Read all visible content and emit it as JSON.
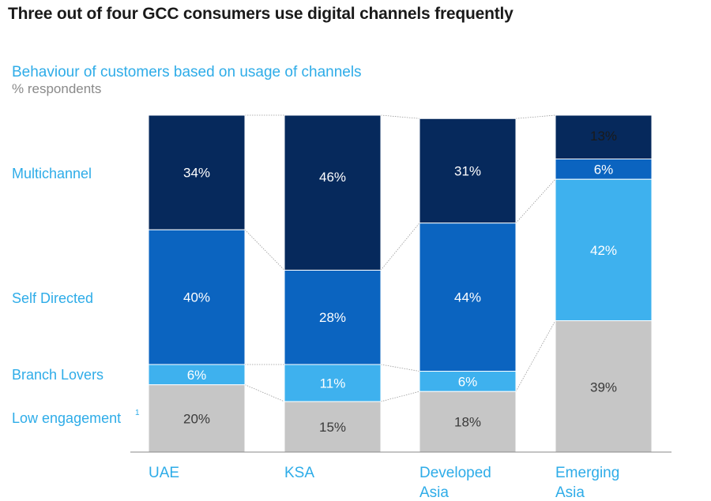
{
  "header": {
    "title": "Three out of four GCC consumers use digital channels frequently",
    "subtitle": "Behaviour of customers based on usage of channels",
    "unit": "% respondents"
  },
  "chart_data": {
    "type": "bar",
    "stacked": true,
    "title": "Three out of four GCC consumers use digital channels frequently",
    "subtitle": "Behaviour of customers based on usage of channels",
    "ylabel": "% respondents",
    "categories": [
      {
        "lines": [
          "UAE"
        ]
      },
      {
        "lines": [
          "KSA"
        ]
      },
      {
        "lines": [
          "Developed",
          "Asia"
        ]
      },
      {
        "lines": [
          "Emerging",
          "Asia"
        ]
      }
    ],
    "series_order_bottom_to_top": [
      "Low engagement",
      "Branch Lovers",
      "Self Directed",
      "Multichannel"
    ],
    "series": [
      {
        "name": "Low engagement",
        "superscript": "1",
        "color": "#c6c6c6",
        "label_color": "#3a3a3a",
        "values": [
          20,
          15,
          18,
          39
        ]
      },
      {
        "name": "Branch Lovers",
        "color": "#3eb1ee",
        "label_color": "#ffffff",
        "values": [
          6,
          11,
          6,
          0
        ]
      },
      {
        "name": "Self Directed",
        "color": "#0b64c0",
        "label_color": "#ffffff",
        "values": [
          40,
          28,
          44,
          42
        ]
      },
      {
        "name": "Multichannel",
        "color": "#06295c",
        "label_color": "#ffffff",
        "values": [
          34,
          46,
          31,
          19
        ]
      }
    ],
    "emerging_asia_breakdown": {
      "note": "Emerging Asia shows the Self Directed tier as 42% on light blue and the Multichannel tier split into 6% and 13%",
      "segments_bottom_to_top": [
        {
          "value": 39,
          "label": "39%",
          "color": "#c6c6c6",
          "label_color": "#3a3a3a"
        },
        {
          "value": 42,
          "label": "42%",
          "color": "#3eb1ee",
          "label_color": "#ffffff"
        },
        {
          "value": 6,
          "label": "6%",
          "color": "#0b64c0",
          "label_color": "#ffffff"
        },
        {
          "value": 13,
          "label": "13%",
          "color": "#06295c",
          "label_color": "#1a1a1a"
        }
      ]
    },
    "row_labels": [
      "Multichannel",
      "Self Directed",
      "Branch Lovers",
      "Low engagement"
    ],
    "ylim": [
      0,
      100
    ],
    "legend": "left",
    "grid": false
  }
}
